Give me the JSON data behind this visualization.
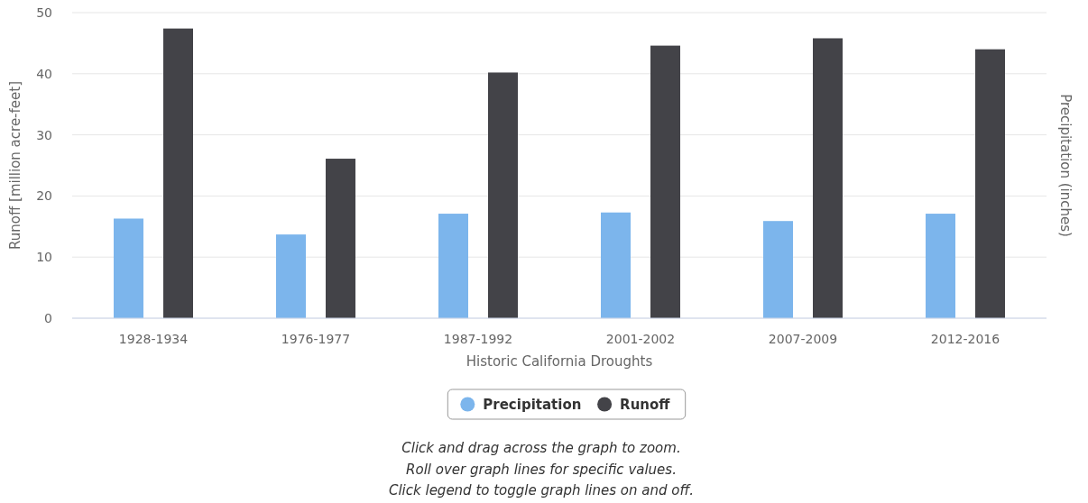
{
  "chart_data": {
    "type": "bar",
    "xlabel": "Historic California Droughts",
    "ylabel": "Runoff [million acre-feet]",
    "y2label": "Precipitation (inches)",
    "categories": [
      "1928-1934",
      "1976-1977",
      "1987-1992",
      "2001-2002",
      "2007-2009",
      "2012-2016"
    ],
    "series": [
      {
        "name": "Precipitation",
        "color": "#7cb5ec",
        "values": [
          16.3,
          13.7,
          17.1,
          17.3,
          15.9,
          17.1
        ]
      },
      {
        "name": "Runoff",
        "color": "#434348",
        "values": [
          47.4,
          26.1,
          40.2,
          44.6,
          45.8,
          44.0
        ]
      }
    ],
    "ylim": [
      0,
      50
    ],
    "yticks": [
      0,
      10,
      20,
      30,
      40,
      50
    ],
    "grid": "y",
    "legend": "bottom",
    "annotations": [
      "Click and drag across the graph to zoom.",
      "Roll over graph lines for specific values.",
      "Click legend to toggle graph lines on and off."
    ]
  }
}
